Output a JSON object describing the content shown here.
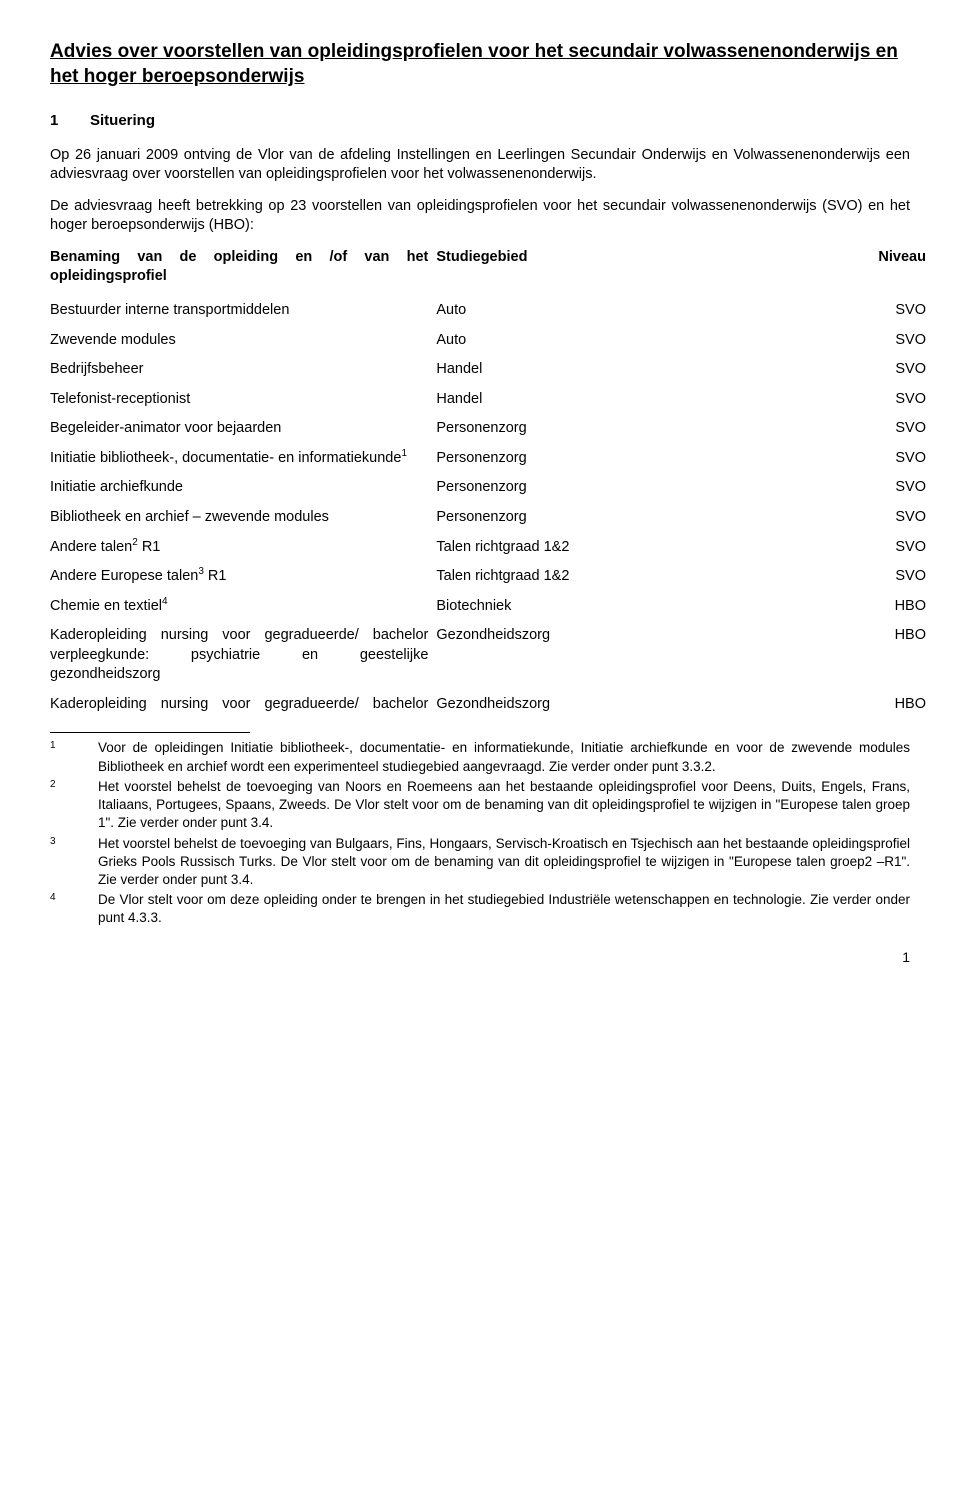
{
  "title": "Advies over voorstellen van opleidingsprofielen voor het secundair volwassenenonderwijs en het hoger beroepsonderwijs",
  "section": {
    "number": "1",
    "label": "Situering"
  },
  "para1": "Op 26 januari 2009 ontving de Vlor van de afdeling Instellingen en Leerlingen Secundair Onderwijs en Volwassenenonderwijs een adviesvraag over voorstellen van opleidingsprofielen voor het volwassenenonderwijs.",
  "para2": "De adviesvraag heeft betrekking op 23 voorstellen van opleidingsprofielen voor het secundair volwassenenonderwijs (SVO) en het hoger beroepsonderwijs (HBO):",
  "table_header": {
    "c1": "Benaming van de opleiding en /of van het opleidingsprofiel",
    "c2": "Studiegebied",
    "c3": "Niveau"
  },
  "rows": [
    {
      "c1": "Bestuurder interne transportmiddelen",
      "c2": "Auto",
      "c3": "SVO",
      "sup": ""
    },
    {
      "c1": "Zwevende modules",
      "c2": "Auto",
      "c3": "SVO",
      "sup": ""
    },
    {
      "c1": "Bedrijfsbeheer",
      "c2": "Handel",
      "c3": "SVO",
      "sup": ""
    },
    {
      "c1": "Telefonist-receptionist",
      "c2": "Handel",
      "c3": "SVO",
      "sup": ""
    },
    {
      "c1": "Begeleider-animator voor bejaarden",
      "c2": "Personenzorg",
      "c3": "SVO",
      "sup": ""
    },
    {
      "c1": "Initiatie bibliotheek-, documentatie- en informatiekunde",
      "c2": "Personenzorg",
      "c3": "SVO",
      "sup": "1"
    },
    {
      "c1": "Initiatie archiefkunde",
      "c2": "Personenzorg",
      "c3": "SVO",
      "sup": ""
    },
    {
      "c1": "Bibliotheek en archief – zwevende modules",
      "c2": "Personenzorg",
      "c3": "SVO",
      "sup": ""
    },
    {
      "c1": "Andere talen",
      "post": " R1",
      "c2": "Talen richtgraad 1&2",
      "c3": "SVO",
      "sup": "2"
    },
    {
      "c1": "Andere Europese talen",
      "post": " R1",
      "c2": "Talen richtgraad 1&2",
      "c3": "SVO",
      "sup": "3"
    },
    {
      "c1": "Chemie en textiel",
      "c2": "Biotechniek",
      "c3": "HBO",
      "sup": "4"
    },
    {
      "c1": "Kaderopleiding nursing voor gegradueerde/ bachelor verpleegkunde: psychiatrie en geestelijke gezondheidszorg",
      "c2": "Gezondheidszorg",
      "c3": "HBO",
      "sup": ""
    },
    {
      "c1": "Kaderopleiding nursing voor gegradueerde/ bachelor",
      "c2": "Gezondheidszorg",
      "c3": "HBO",
      "sup": ""
    }
  ],
  "footnotes": [
    {
      "n": "1",
      "t": "Voor de opleidingen Initiatie bibliotheek-, documentatie- en informatiekunde, Initiatie archiefkunde en voor de zwevende modules Bibliotheek en archief wordt een experimenteel studiegebied aangevraagd. Zie verder onder punt 3.3.2."
    },
    {
      "n": "2",
      "t": "Het voorstel behelst de toevoeging van Noors en Roemeens aan het bestaande opleidingsprofiel voor Deens, Duits, Engels, Frans, Italiaans, Portugees, Spaans, Zweeds. De Vlor stelt voor om de benaming van dit opleidingsprofiel te wijzigen in \"Europese talen groep 1\". Zie verder onder punt 3.4."
    },
    {
      "n": "3",
      "t": "Het voorstel behelst de toevoeging van Bulgaars, Fins, Hongaars, Servisch-Kroatisch en Tsjechisch aan het bestaande opleidingsprofiel Grieks Pools Russisch Turks. De Vlor stelt voor om de benaming van dit opleidingsprofiel te wijzigen in \"Europese talen groep2 –R1\". Zie verder onder punt 3.4."
    },
    {
      "n": "4",
      "t": "De Vlor stelt voor om deze opleiding onder te brengen in het studiegebied Industriële wetenschappen en technologie. Zie verder onder punt 4.3.3."
    }
  ],
  "page_number": "1"
}
